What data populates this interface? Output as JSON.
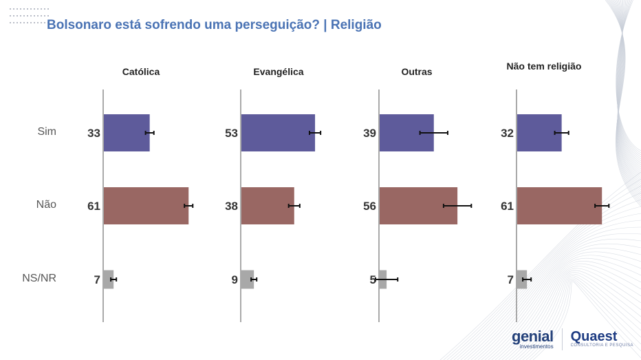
{
  "title": "Bolsonaro está sofrendo uma perseguição? | Religião",
  "chart_data": {
    "type": "bar",
    "orientation": "horizontal",
    "title": "Bolsonaro está sofrendo uma perseguição? | Religião",
    "categories": [
      "Sim",
      "Não",
      "NS/NR"
    ],
    "panels": [
      {
        "name": "Católica",
        "values": [
          33,
          61,
          7
        ],
        "error": [
          3,
          3,
          2
        ]
      },
      {
        "name": "Evangélica",
        "values": [
          53,
          38,
          9
        ],
        "error": [
          4,
          4,
          2
        ]
      },
      {
        "name": "Outras",
        "values": [
          39,
          56,
          5
        ],
        "error": [
          10,
          10,
          8
        ]
      },
      {
        "name": "Não tem religião",
        "values": [
          32,
          61,
          7
        ],
        "error": [
          5,
          5,
          3
        ]
      }
    ],
    "colors": {
      "Sim": "#5e5b9b",
      "Não": "#996763",
      "NS/NR": "#a8a8a8"
    },
    "xlim": [
      0,
      100
    ],
    "grid": false
  },
  "logos": {
    "genial": "genial",
    "genial_sub": "investimentos",
    "quaest": "Quaest",
    "quaest_sub": "CONSULTORIA E PESQUISA"
  }
}
